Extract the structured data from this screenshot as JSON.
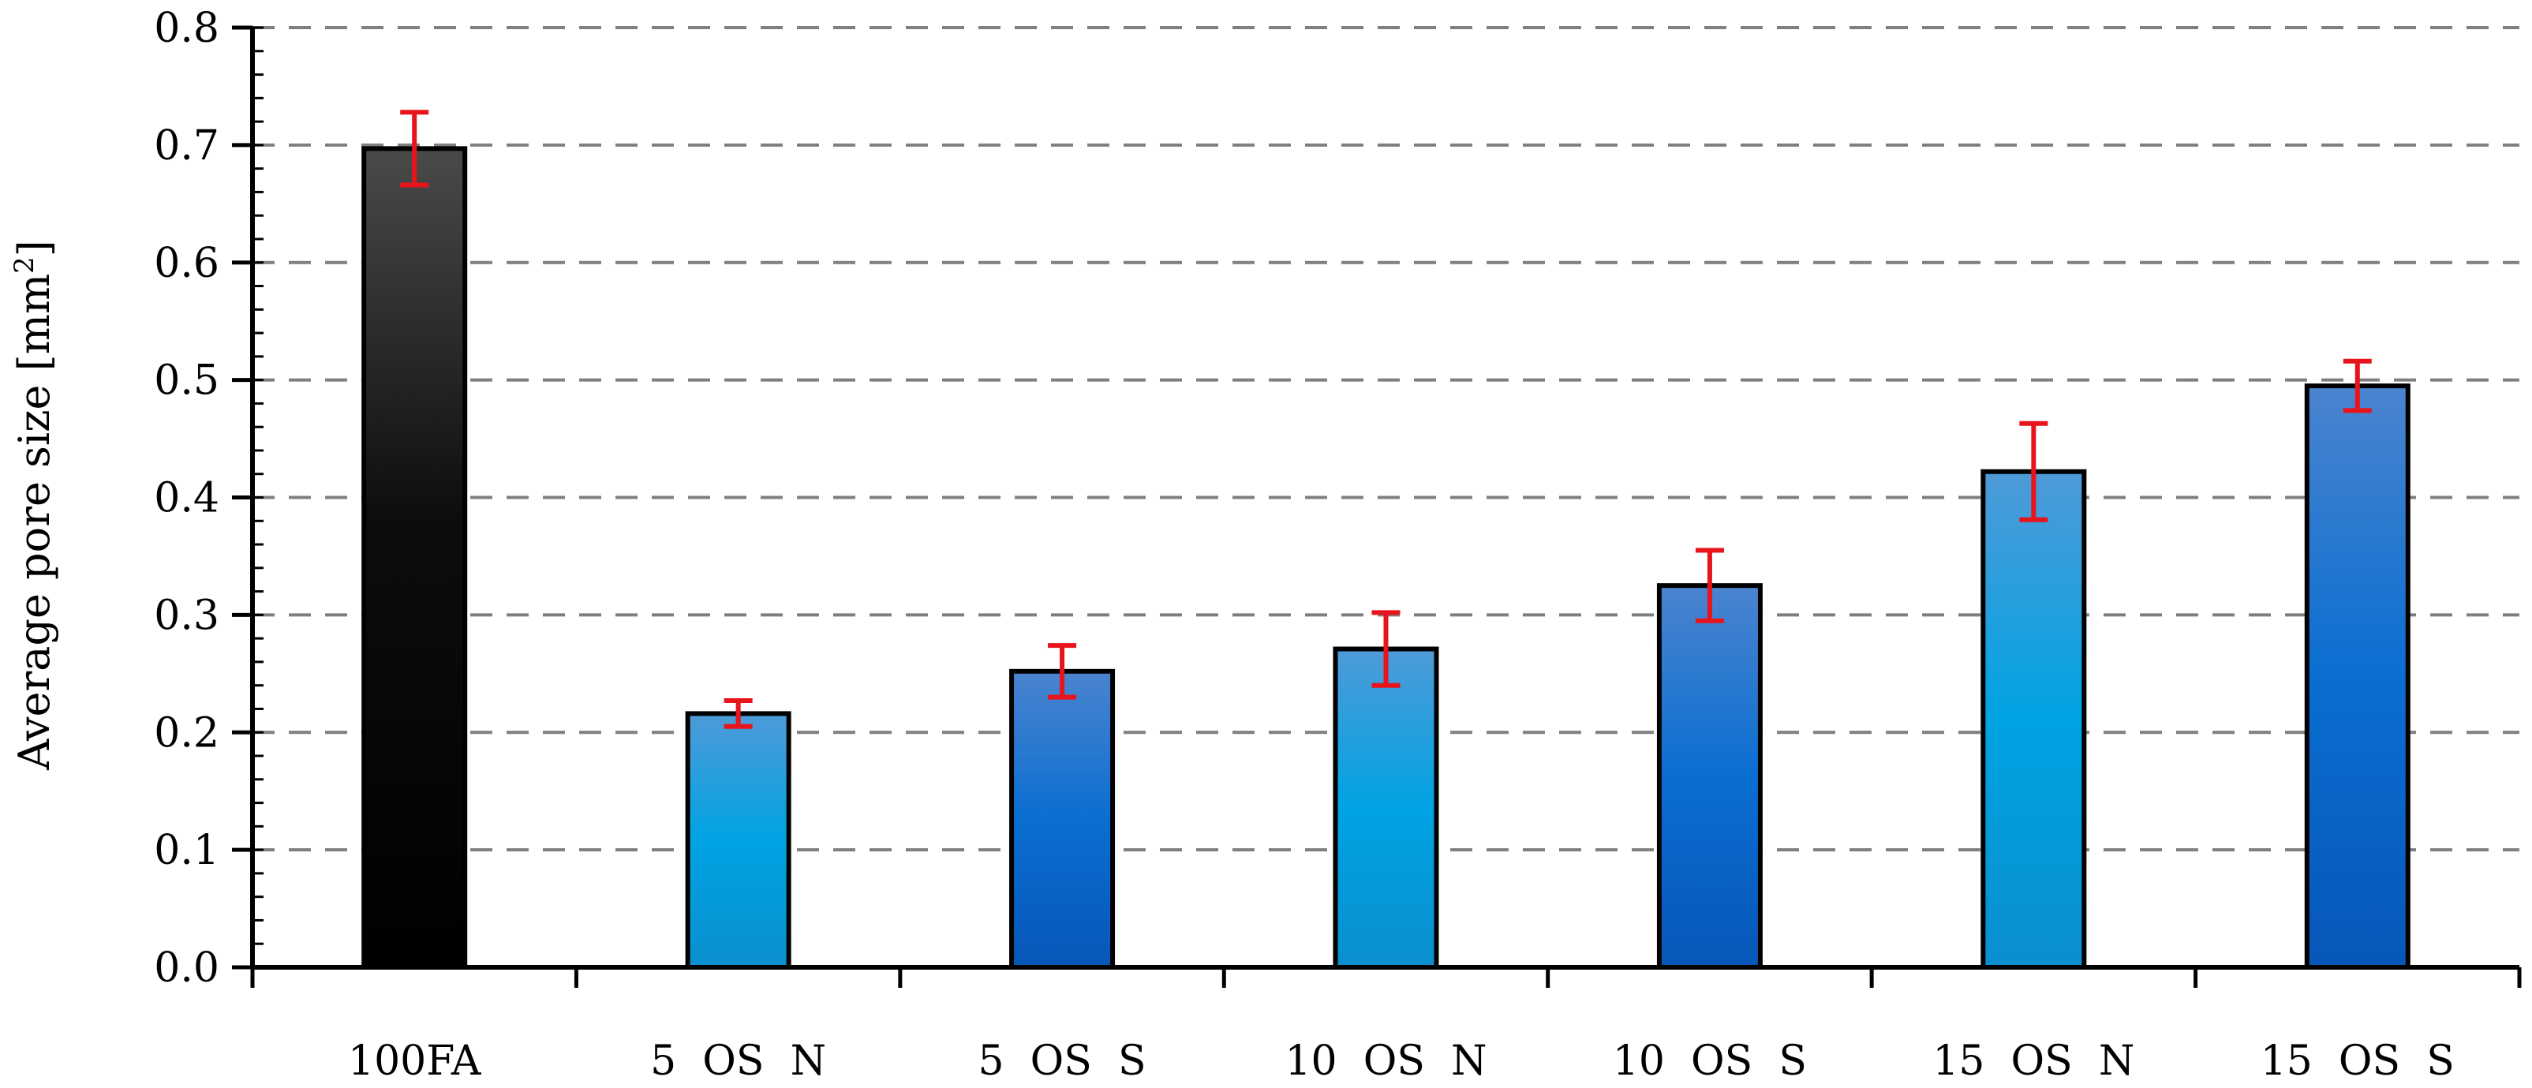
{
  "chart_data": {
    "type": "bar",
    "title": "",
    "xlabel": "",
    "ylabel": "Average pore size [mm",
    "ylabel_superscript": "2",
    "ylabel_suffix": "]",
    "ylim": [
      0,
      0.8
    ],
    "yticks": [
      "0.0",
      "0.1",
      "0.2",
      "0.3",
      "0.4",
      "0.5",
      "0.6",
      "0.7",
      "0.8"
    ],
    "grid": "horizontal dashed",
    "legend": "none",
    "categories": [
      "100FA",
      "5  OS  N",
      "5  OS  S",
      "10  OS  N",
      "10  OS  S",
      "15  OS  N",
      "15  OS  S"
    ],
    "values": [
      0.697,
      0.216,
      0.252,
      0.271,
      0.325,
      0.422,
      0.495
    ],
    "error": [
      0.031,
      0.011,
      0.022,
      0.031,
      0.03,
      0.041,
      0.021
    ],
    "bar_styles": [
      "black",
      "light-blue",
      "dark-blue",
      "light-blue",
      "dark-blue",
      "light-blue",
      "dark-blue"
    ],
    "colors": {
      "error_bar": "#e8141c",
      "grid": "#7f7f7f",
      "axis": "#000000",
      "bar_outline": "#000000"
    }
  }
}
